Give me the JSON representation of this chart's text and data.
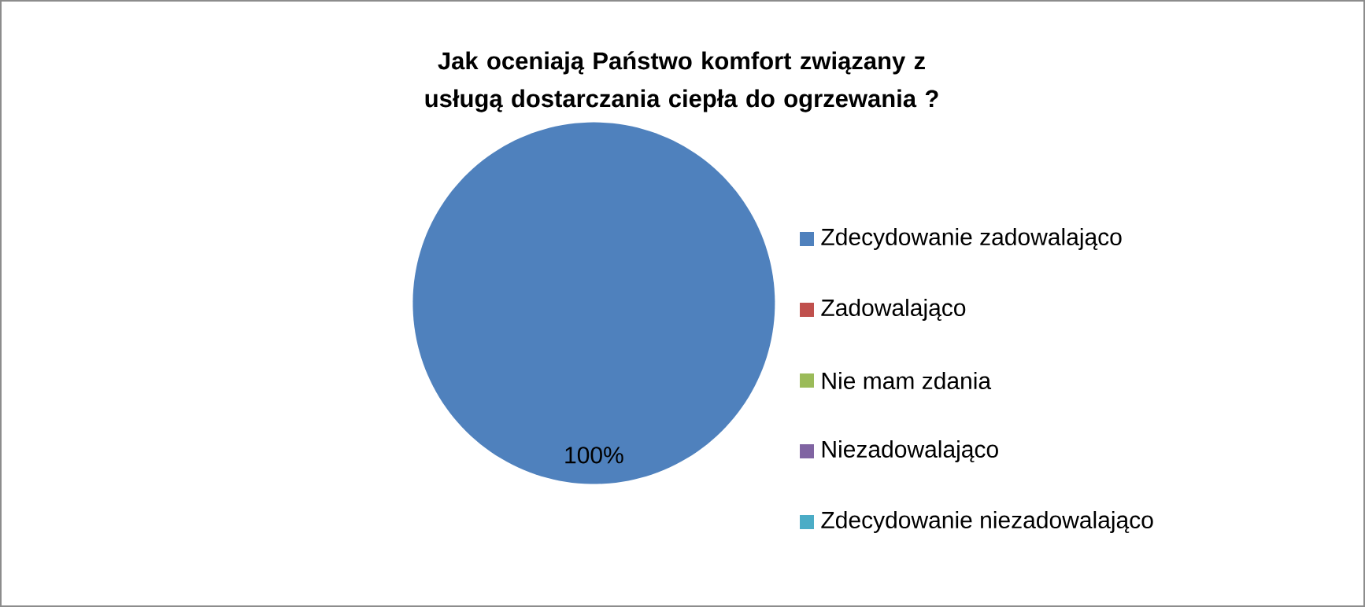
{
  "chart_data": {
    "type": "pie",
    "title": "Jak oceniają  Państwo komfort związany z usługą dostarczania ciepła do ogrzewania ?",
    "categories": [
      "Zdecydowanie zadowalająco",
      "Zadowalająco",
      "Nie mam zdania",
      "Niezadowalająco",
      "Zdecydowanie niezadowalająco"
    ],
    "values": [
      100,
      0,
      0,
      0,
      0
    ],
    "colors": [
      "#4f81bd",
      "#c0504d",
      "#9bbb59",
      "#8064a2",
      "#4bacc6"
    ],
    "value_labels": [
      "100%",
      null,
      null,
      null,
      null
    ],
    "legend": "right"
  }
}
